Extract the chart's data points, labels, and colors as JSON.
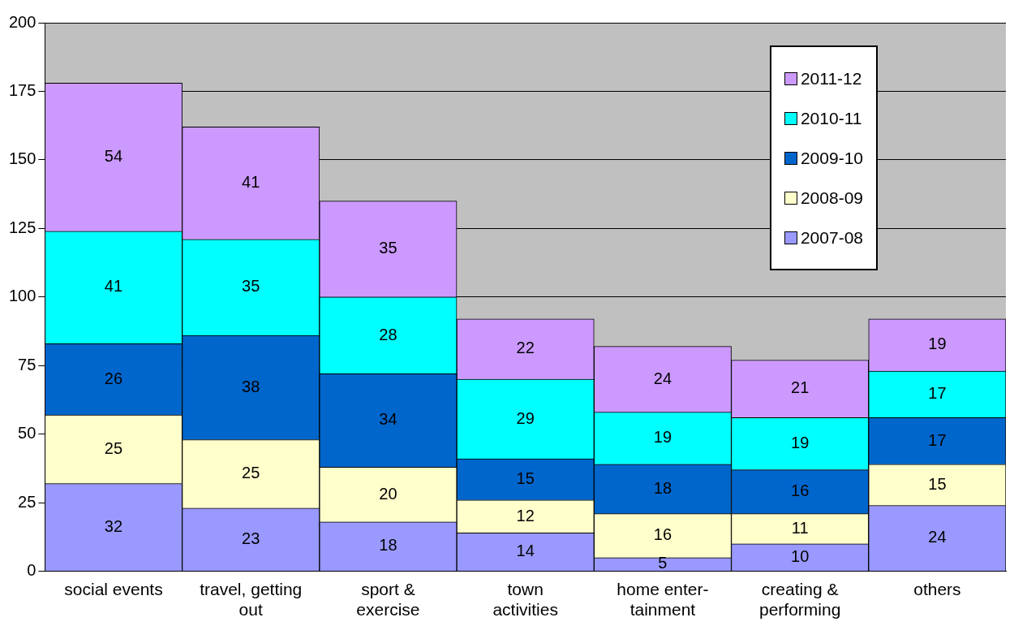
{
  "chart_data": {
    "type": "bar",
    "stacked": true,
    "categories": [
      "social events",
      "travel, getting\nout",
      "sport &\nexercise",
      "town\nactivities",
      "home enter-\ntainment",
      "creating &\nperforming",
      "others"
    ],
    "series": [
      {
        "name": "2007-08",
        "color": "#9999ff",
        "values": [
          32,
          23,
          18,
          14,
          5,
          10,
          24
        ]
      },
      {
        "name": "2008-09",
        "color": "#ffffcc",
        "values": [
          25,
          25,
          20,
          12,
          16,
          11,
          15
        ]
      },
      {
        "name": "2009-10",
        "color": "#0066cc",
        "values": [
          26,
          38,
          34,
          15,
          18,
          16,
          17
        ]
      },
      {
        "name": "2010-11",
        "color": "#00ffff",
        "values": [
          41,
          35,
          28,
          29,
          19,
          19,
          17
        ]
      },
      {
        "name": "2011-12",
        "color": "#cc99ff",
        "values": [
          54,
          41,
          35,
          22,
          24,
          21,
          19
        ]
      }
    ],
    "ylim": [
      0,
      200
    ],
    "yticks": [
      0,
      25,
      50,
      75,
      100,
      125,
      150,
      175,
      200
    ],
    "grid": "y",
    "legend": "top right",
    "data_labels": true
  }
}
